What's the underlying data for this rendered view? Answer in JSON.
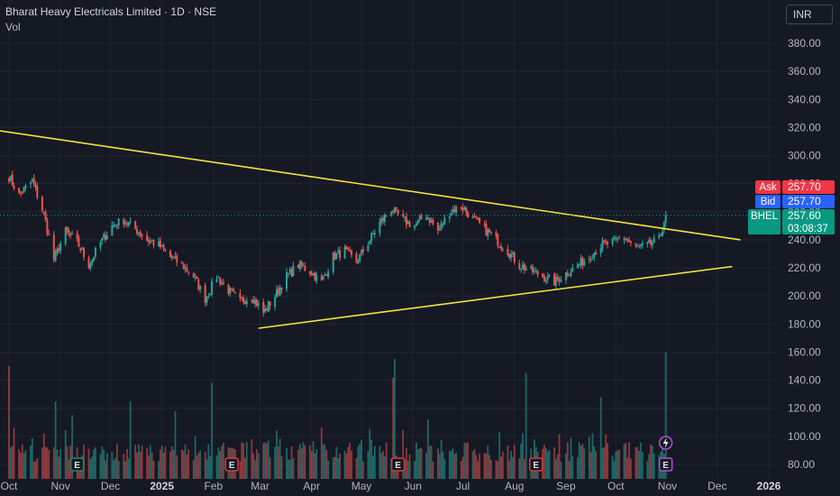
{
  "header": {
    "title": "Bharat Heavy Electricals Limited · 1D · NSE",
    "indicator": "Vol",
    "currency": "INR"
  },
  "colors": {
    "background": "#151924",
    "grid": "#1f2430",
    "up": "#26a69a",
    "down": "#ef5350",
    "trendline": "#f5e33b",
    "axis_text": "#b2b5be",
    "ask": "#f23645",
    "bid": "#2962ff",
    "last": "#089981"
  },
  "chart_data": {
    "type": "candlestick",
    "symbol": "BHEL",
    "interval": "1D",
    "exchange": "NSE",
    "x_ticks": [
      "Oct",
      "Nov",
      "Dec",
      "2025",
      "Feb",
      "Mar",
      "Apr",
      "May",
      "Jun",
      "Jul",
      "Aug",
      "Sep",
      "Oct",
      "Nov",
      "Dec",
      "2026"
    ],
    "y_ticks": [
      "80.00",
      "100.00",
      "120.00",
      "140.00",
      "160.00",
      "180.00",
      "200.00",
      "220.00",
      "240.00",
      "260.00",
      "280.00",
      "300.00",
      "320.00",
      "340.00",
      "360.00",
      "380.00"
    ],
    "ylim": [
      75,
      395
    ],
    "price_path": [
      [
        "2024-10-01",
        285
      ],
      [
        "2024-10-07",
        272
      ],
      [
        "2024-10-15",
        282
      ],
      [
        "2024-10-22",
        258
      ],
      [
        "2024-10-28",
        226
      ],
      [
        "2024-11-04",
        246
      ],
      [
        "2024-11-11",
        238
      ],
      [
        "2024-11-18",
        222
      ],
      [
        "2024-11-25",
        238
      ],
      [
        "2024-12-02",
        250
      ],
      [
        "2024-12-09",
        254
      ],
      [
        "2024-12-16",
        248
      ],
      [
        "2024-12-23",
        240
      ],
      [
        "2024-12-30",
        236
      ],
      [
        "2025-01-06",
        228
      ],
      [
        "2025-01-13",
        222
      ],
      [
        "2025-01-20",
        214
      ],
      [
        "2025-01-27",
        198
      ],
      [
        "2025-02-03",
        214
      ],
      [
        "2025-02-10",
        204
      ],
      [
        "2025-02-17",
        196
      ],
      [
        "2025-02-24",
        200
      ],
      [
        "2025-03-03",
        188
      ],
      [
        "2025-03-10",
        200
      ],
      [
        "2025-03-17",
        214
      ],
      [
        "2025-03-24",
        222
      ],
      [
        "2025-03-31",
        218
      ],
      [
        "2025-04-07",
        210
      ],
      [
        "2025-04-14",
        228
      ],
      [
        "2025-04-21",
        232
      ],
      [
        "2025-04-28",
        224
      ],
      [
        "2025-05-05",
        238
      ],
      [
        "2025-05-12",
        252
      ],
      [
        "2025-05-19",
        262
      ],
      [
        "2025-05-26",
        254
      ],
      [
        "2025-06-02",
        250
      ],
      [
        "2025-06-09",
        258
      ],
      [
        "2025-06-16",
        246
      ],
      [
        "2025-06-23",
        260
      ],
      [
        "2025-06-30",
        264
      ],
      [
        "2025-07-07",
        255
      ],
      [
        "2025-07-14",
        248
      ],
      [
        "2025-07-21",
        240
      ],
      [
        "2025-07-28",
        232
      ],
      [
        "2025-08-04",
        222
      ],
      [
        "2025-08-11",
        218
      ],
      [
        "2025-08-18",
        214
      ],
      [
        "2025-08-25",
        210
      ],
      [
        "2025-09-01",
        216
      ],
      [
        "2025-09-08",
        222
      ],
      [
        "2025-09-15",
        228
      ],
      [
        "2025-09-22",
        236
      ],
      [
        "2025-09-29",
        238
      ],
      [
        "2025-10-06",
        242
      ],
      [
        "2025-10-13",
        234
      ],
      [
        "2025-10-20",
        236
      ],
      [
        "2025-10-27",
        240
      ],
      [
        "2025-10-31",
        257.6
      ]
    ],
    "volume_spikes": [
      [
        "2024-10-01",
        150
      ],
      [
        "2024-10-20",
        140
      ],
      [
        "2024-10-29",
        125
      ],
      [
        "2024-11-08",
        115
      ],
      [
        "2024-12-13",
        125
      ],
      [
        "2025-01-09",
        118
      ],
      [
        "2025-01-31",
        138
      ],
      [
        "2025-05-20",
        142
      ],
      [
        "2025-05-21",
        155
      ],
      [
        "2025-06-10",
        112
      ],
      [
        "2025-08-08",
        145
      ],
      [
        "2025-09-22",
        128
      ],
      [
        "2025-10-31",
        160
      ]
    ],
    "trendlines": [
      {
        "from": [
          "2024-09-12",
          320
        ],
        "to": [
          "2025-12-15",
          240
        ]
      },
      {
        "from": [
          "2025-02-28",
          177
        ],
        "to": [
          "2025-12-10",
          221
        ]
      }
    ],
    "event_markers": [
      {
        "label": "E",
        "date": "2024-11-11"
      },
      {
        "label": "E",
        "date": "2025-02-12"
      },
      {
        "label": "E",
        "date": "2025-05-23"
      },
      {
        "label": "E",
        "date": "2025-08-14"
      },
      {
        "label": "E",
        "date": "2025-10-31"
      }
    ],
    "price_labels": {
      "ask": {
        "name": "Ask",
        "value": "257.70"
      },
      "bid": {
        "name": "Bid",
        "value": "257.70"
      },
      "last": {
        "name": "BHEL",
        "value": "257.60",
        "countdown": "03:08:37"
      }
    }
  }
}
